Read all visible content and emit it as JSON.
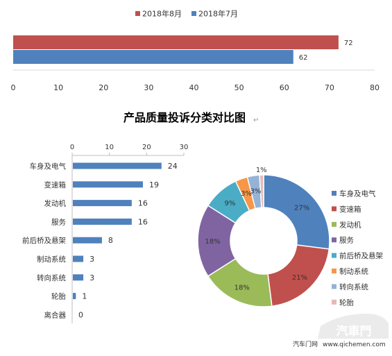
{
  "chart_data": [
    {
      "type": "bar",
      "orientation": "horizontal",
      "series": [
        {
          "name": "2018年8月",
          "values": [
            72
          ],
          "color": "#c0504d"
        },
        {
          "name": "2018年7月",
          "values": [
            62
          ],
          "color": "#4f81bd"
        }
      ],
      "xlim": [
        0,
        80
      ],
      "xticks": [
        0,
        10,
        20,
        30,
        40,
        50,
        60,
        70,
        80
      ],
      "legend": "top",
      "grid": false
    },
    {
      "type": "bar",
      "orientation": "horizontal",
      "categories": [
        "车身及电气",
        "变速箱",
        "发动机",
        "服务",
        "前后桥及悬架",
        "制动系统",
        "转向系统",
        "轮胎",
        "离合器"
      ],
      "values": [
        24,
        19,
        16,
        16,
        8,
        3,
        3,
        1,
        0
      ],
      "xlim": [
        0,
        30
      ],
      "xticks": [
        0,
        10,
        20,
        30
      ],
      "axis_position": "top",
      "color": "#4f81bd",
      "grid": false
    },
    {
      "type": "pie",
      "donut": true,
      "categories": [
        "车身及电气",
        "变速箱",
        "发动机",
        "服务",
        "前后桥及悬架",
        "制动系统",
        "转向系统",
        "轮胎"
      ],
      "values": [
        27,
        21,
        18,
        18,
        9,
        3,
        3,
        1
      ],
      "labels": [
        "27%",
        "21%",
        "18%",
        "18%",
        "9%",
        "3%",
        "3%",
        "1%"
      ],
      "colors": [
        "#4f81bd",
        "#c0504d",
        "#9bbb59",
        "#8064a2",
        "#4bacc6",
        "#f79646",
        "#95b3d7",
        "#e6b9b8"
      ],
      "legend": "right"
    }
  ],
  "title": "产品质量投诉分类对比图",
  "watermark": {
    "text": "汽车门网",
    "url": "www.qichemen.com",
    "logo": "汽車門"
  }
}
